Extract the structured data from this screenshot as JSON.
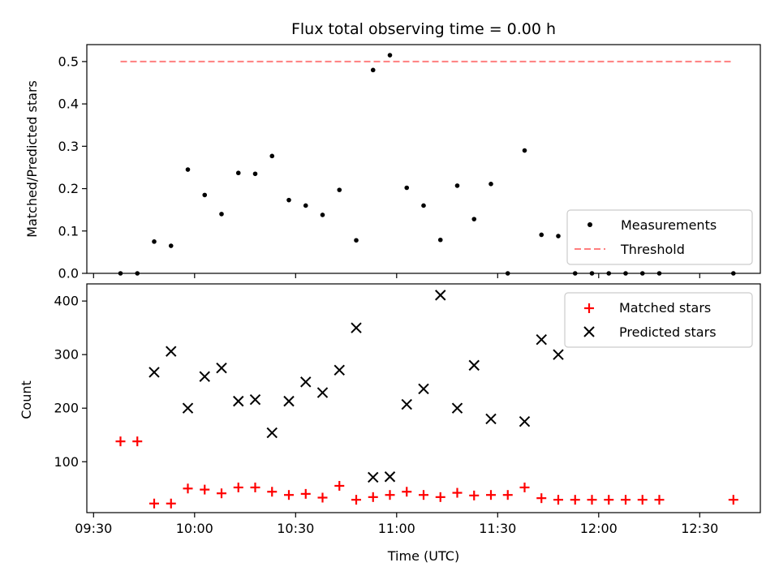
{
  "chart_data": [
    {
      "type": "scatter",
      "title": "Flux total observing time = 0.00 h",
      "xlabel": "",
      "ylabel": "Matched/Predicted stars",
      "ylim": [
        0,
        0.54
      ],
      "yticks": [
        "0.0",
        "0.1",
        "0.2",
        "0.3",
        "0.4",
        "0.5"
      ],
      "xlim": [
        "09:28",
        "12:48"
      ],
      "x_tick_labels_shown": false,
      "legend_position": "lower-right",
      "legend": [
        "Measurements",
        "Threshold"
      ],
      "series": [
        {
          "name": "Measurements",
          "marker": "dot",
          "color": "#000000",
          "points": [
            [
              "09:38",
              0.0
            ],
            [
              "09:43",
              0.0
            ],
            [
              "09:48",
              0.075
            ],
            [
              "09:53",
              0.065
            ],
            [
              "09:58",
              0.245
            ],
            [
              "10:03",
              0.185
            ],
            [
              "10:08",
              0.14
            ],
            [
              "10:13",
              0.237
            ],
            [
              "10:18",
              0.235
            ],
            [
              "10:23",
              0.277
            ],
            [
              "10:28",
              0.173
            ],
            [
              "10:33",
              0.16
            ],
            [
              "10:38",
              0.138
            ],
            [
              "10:43",
              0.197
            ],
            [
              "10:48",
              0.078
            ],
            [
              "10:53",
              0.48
            ],
            [
              "10:58",
              0.515
            ],
            [
              "11:03",
              0.202
            ],
            [
              "11:08",
              0.16
            ],
            [
              "11:13",
              0.079
            ],
            [
              "11:18",
              0.207
            ],
            [
              "11:23",
              0.128
            ],
            [
              "11:28",
              0.211
            ],
            [
              "11:33",
              0.0
            ],
            [
              "11:38",
              0.29
            ],
            [
              "11:43",
              0.091
            ],
            [
              "11:48",
              0.088
            ],
            [
              "11:53",
              0.0
            ],
            [
              "11:58",
              0.0
            ],
            [
              "12:03",
              0.0
            ],
            [
              "12:08",
              0.0
            ],
            [
              "12:13",
              0.0
            ],
            [
              "12:18",
              0.0
            ],
            [
              "12:40",
              0.0
            ]
          ]
        },
        {
          "name": "Threshold",
          "style": "dashed-line",
          "color": "#ff7f7f",
          "points": [
            [
              "09:38",
              0.5
            ],
            [
              "12:40",
              0.5
            ]
          ]
        }
      ]
    },
    {
      "type": "scatter",
      "title": "",
      "xlabel": "Time (UTC)",
      "ylabel": "Count",
      "ylim": [
        5,
        432
      ],
      "yticks": [
        "100",
        "200",
        "300",
        "400"
      ],
      "xlim": [
        "09:28",
        "12:48"
      ],
      "xticks": [
        "09:30",
        "10:00",
        "10:30",
        "11:00",
        "11:30",
        "12:00",
        "12:30"
      ],
      "legend_position": "upper-right",
      "legend": [
        "Matched stars",
        "Predicted stars"
      ],
      "series": [
        {
          "name": "Matched stars",
          "marker": "plus",
          "color": "#ff0000",
          "points": [
            [
              "09:38",
              138
            ],
            [
              "09:43",
              138
            ],
            [
              "09:48",
              22
            ],
            [
              "09:53",
              22
            ],
            [
              "09:58",
              50
            ],
            [
              "10:03",
              48
            ],
            [
              "10:08",
              41
            ],
            [
              "10:13",
              52
            ],
            [
              "10:18",
              52
            ],
            [
              "10:23",
              44
            ],
            [
              "10:28",
              38
            ],
            [
              "10:33",
              40
            ],
            [
              "10:38",
              33
            ],
            [
              "10:43",
              55
            ],
            [
              "10:48",
              29
            ],
            [
              "10:53",
              34
            ],
            [
              "10:58",
              38
            ],
            [
              "11:03",
              44
            ],
            [
              "11:08",
              38
            ],
            [
              "11:13",
              34
            ],
            [
              "11:18",
              42
            ],
            [
              "11:23",
              37
            ],
            [
              "11:28",
              38
            ],
            [
              "11:33",
              38
            ],
            [
              "11:38",
              52
            ],
            [
              "11:43",
              32
            ],
            [
              "11:48",
              29
            ],
            [
              "11:53",
              29
            ],
            [
              "11:58",
              29
            ],
            [
              "12:03",
              29
            ],
            [
              "12:08",
              29
            ],
            [
              "12:13",
              29
            ],
            [
              "12:18",
              29
            ],
            [
              "12:40",
              29
            ]
          ]
        },
        {
          "name": "Predicted stars",
          "marker": "x",
          "color": "#000000",
          "points": [
            [
              "09:48",
              267
            ],
            [
              "09:53",
              306
            ],
            [
              "09:58",
              200
            ],
            [
              "10:03",
              259
            ],
            [
              "10:08",
              275
            ],
            [
              "10:13",
              213
            ],
            [
              "10:18",
              216
            ],
            [
              "10:23",
              154
            ],
            [
              "10:28",
              213
            ],
            [
              "10:33",
              249
            ],
            [
              "10:38",
              229
            ],
            [
              "10:43",
              271
            ],
            [
              "10:48",
              350
            ],
            [
              "10:53",
              71
            ],
            [
              "10:58",
              72
            ],
            [
              "11:03",
              207
            ],
            [
              "11:08",
              236
            ],
            [
              "11:13",
              411
            ],
            [
              "11:18",
              200
            ],
            [
              "11:23",
              280
            ],
            [
              "11:28",
              180
            ],
            [
              "11:38",
              175
            ],
            [
              "11:43",
              328
            ],
            [
              "11:48",
              300
            ]
          ]
        }
      ]
    }
  ]
}
